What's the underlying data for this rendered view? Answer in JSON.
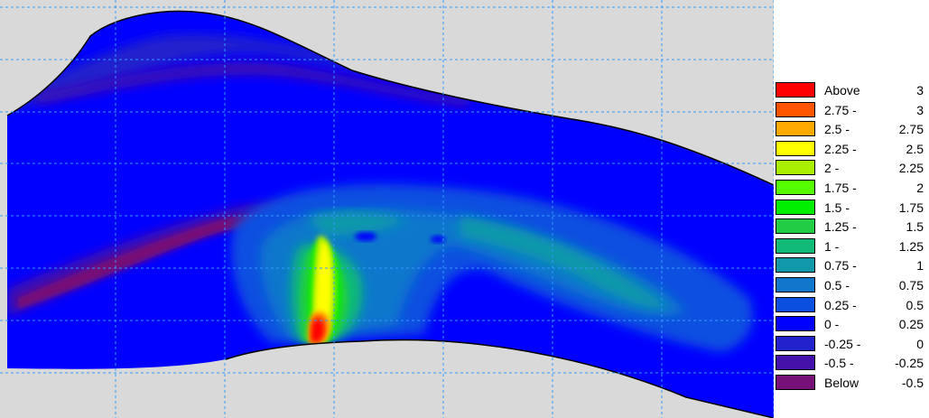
{
  "chart_data": {
    "type": "heatmap",
    "title": "",
    "xlabel": "",
    "ylabel": "",
    "grid": true,
    "legend_placement": "right",
    "legend": [
      {
        "low": "Above",
        "high": "3",
        "color": "#ff0000"
      },
      {
        "low": "2.75 -",
        "high": "3",
        "color": "#ff5500"
      },
      {
        "low": "2.5 -",
        "high": "2.75",
        "color": "#ffaa00"
      },
      {
        "low": "2.25 -",
        "high": "2.5",
        "color": "#ffff00"
      },
      {
        "low": "2 -",
        "high": "2.25",
        "color": "#aaee00"
      },
      {
        "low": "1.75 -",
        "high": "2",
        "color": "#55ff00"
      },
      {
        "low": "1.5 -",
        "high": "1.75",
        "color": "#00ee00"
      },
      {
        "low": "1.25 -",
        "high": "1.5",
        "color": "#22cc44"
      },
      {
        "low": "1 -",
        "high": "1.25",
        "color": "#11bb77"
      },
      {
        "low": "0.75 -",
        "high": "1",
        "color": "#1199aa"
      },
      {
        "low": "0.5 -",
        "high": "0.75",
        "color": "#1177cc"
      },
      {
        "low": "0.25 -",
        "high": "0.5",
        "color": "#0a4fe0"
      },
      {
        "low": "0 -",
        "high": "0.25",
        "color": "#0000ff"
      },
      {
        "low": "-0.25 -",
        "high": "0",
        "color": "#2222cc"
      },
      {
        "low": "-0.5 -",
        "high": "-0.25",
        "color": "#4411aa"
      },
      {
        "low": "Below",
        "high": "-0.5",
        "color": "#771177"
      }
    ],
    "field_description_colors": {
      "background": "#d9d9d9",
      "gridline": "#3399ff",
      "boundary": "#000000"
    }
  }
}
